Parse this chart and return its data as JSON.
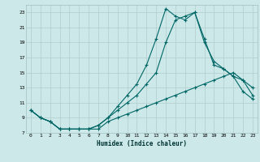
{
  "xlabel": "Humidex (Indice chaleur)",
  "background_color": "#cce8e8",
  "grid_color": "#b0cccc",
  "line_color": "#006666",
  "xlim": [
    -0.5,
    23.5
  ],
  "ylim": [
    7,
    24
  ],
  "yticks": [
    7,
    9,
    11,
    13,
    15,
    17,
    19,
    21,
    23
  ],
  "xticks": [
    0,
    1,
    2,
    3,
    4,
    5,
    6,
    7,
    8,
    9,
    10,
    11,
    12,
    13,
    14,
    15,
    16,
    17,
    18,
    19,
    20,
    21,
    22,
    23
  ],
  "series1_x": [
    0,
    1,
    2,
    3,
    4,
    5,
    6,
    7,
    8,
    9,
    10,
    11,
    12,
    13,
    14,
    15,
    16,
    17,
    18,
    19,
    20,
    21,
    22,
    23
  ],
  "series1_y": [
    10,
    9,
    8.5,
    7.5,
    7.5,
    7.5,
    7.5,
    7.5,
    8.5,
    9,
    9.5,
    10,
    10.5,
    11,
    11.5,
    12,
    12.5,
    13,
    13.5,
    14,
    14.5,
    15,
    14,
    12
  ],
  "series2_x": [
    0,
    1,
    2,
    3,
    4,
    5,
    6,
    7,
    8,
    9,
    10,
    11,
    12,
    13,
    14,
    15,
    16,
    17,
    18,
    19,
    20,
    21,
    22,
    23
  ],
  "series2_y": [
    10,
    9,
    8.5,
    7.5,
    7.5,
    7.5,
    7.5,
    8,
    9,
    10.5,
    12,
    13.5,
    16,
    19.5,
    23.5,
    22.5,
    22,
    23,
    19,
    16.5,
    15.5,
    14.5,
    12.5,
    11.5
  ],
  "series3_x": [
    0,
    1,
    2,
    3,
    4,
    5,
    6,
    7,
    8,
    9,
    10,
    11,
    12,
    13,
    14,
    15,
    16,
    17,
    18,
    19,
    20,
    21,
    22,
    23
  ],
  "series3_y": [
    10,
    9,
    8.5,
    7.5,
    7.5,
    7.5,
    7.5,
    8,
    9,
    10,
    11,
    12,
    13.5,
    15,
    19,
    22,
    22.5,
    23,
    19.5,
    16,
    15.5,
    14.5,
    14,
    13
  ]
}
